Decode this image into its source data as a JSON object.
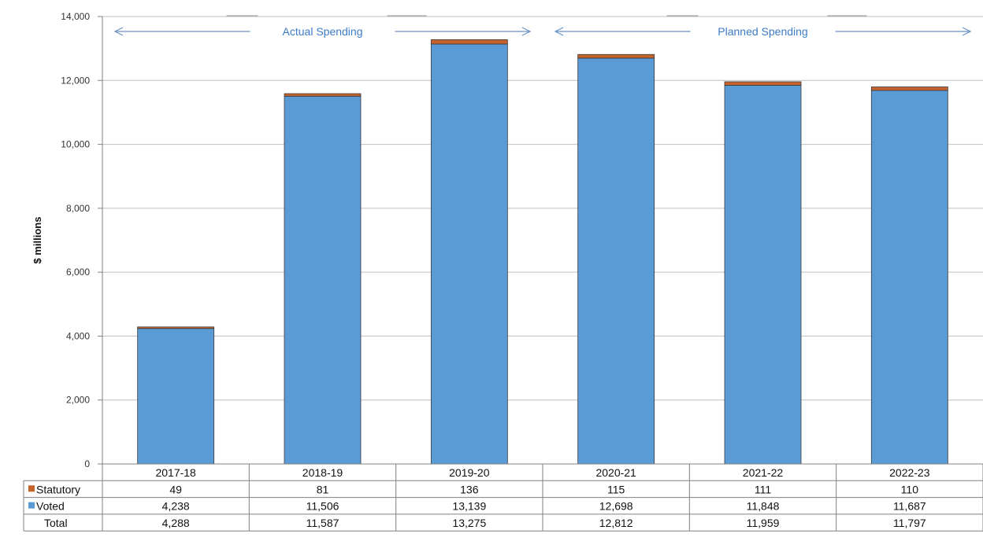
{
  "chart_data": {
    "type": "bar",
    "stacked": true,
    "categories": [
      "2017-18",
      "2018-19",
      "2019-20",
      "2020-21",
      "2021-22",
      "2022-23"
    ],
    "series": [
      {
        "name": "Voted",
        "values": [
          4238,
          11506,
          13139,
          12698,
          11848,
          11687
        ],
        "color": "#5b9bd5"
      },
      {
        "name": "Statutory",
        "values": [
          49,
          81,
          136,
          115,
          111,
          110
        ],
        "color": "#c5632b"
      }
    ],
    "totals": {
      "name": "Total",
      "values": [
        4288,
        11587,
        13275,
        12812,
        11959,
        11797
      ]
    },
    "table": {
      "rows": [
        {
          "label": "Statutory",
          "values": [
            "49",
            "81",
            "136",
            "115",
            "111",
            "110"
          ],
          "color": "#c5632b"
        },
        {
          "label": "Voted",
          "values": [
            "4,238",
            "11,506",
            "13,139",
            "12,698",
            "11,848",
            "11,687"
          ],
          "color": "#5b9bd5"
        },
        {
          "label": "Total",
          "values": [
            "4,288",
            "11,587",
            "13,275",
            "12,812",
            "11,959",
            "11,797"
          ]
        }
      ]
    },
    "ylabel": "$ millions",
    "ylim": [
      0,
      14000
    ],
    "yticks": [
      0,
      2000,
      4000,
      6000,
      8000,
      10000,
      12000,
      14000
    ],
    "ytick_labels": [
      "0",
      "2,000",
      "4,000",
      "6,000",
      "8,000",
      "10,000",
      "12,000",
      "14,000"
    ],
    "grid": true,
    "annotations": [
      {
        "text": "Actual Spending",
        "span": [
          "2017-18",
          "2019-20"
        ]
      },
      {
        "text": "Planned Spending",
        "span": [
          "2020-21",
          "2022-23"
        ]
      }
    ]
  }
}
